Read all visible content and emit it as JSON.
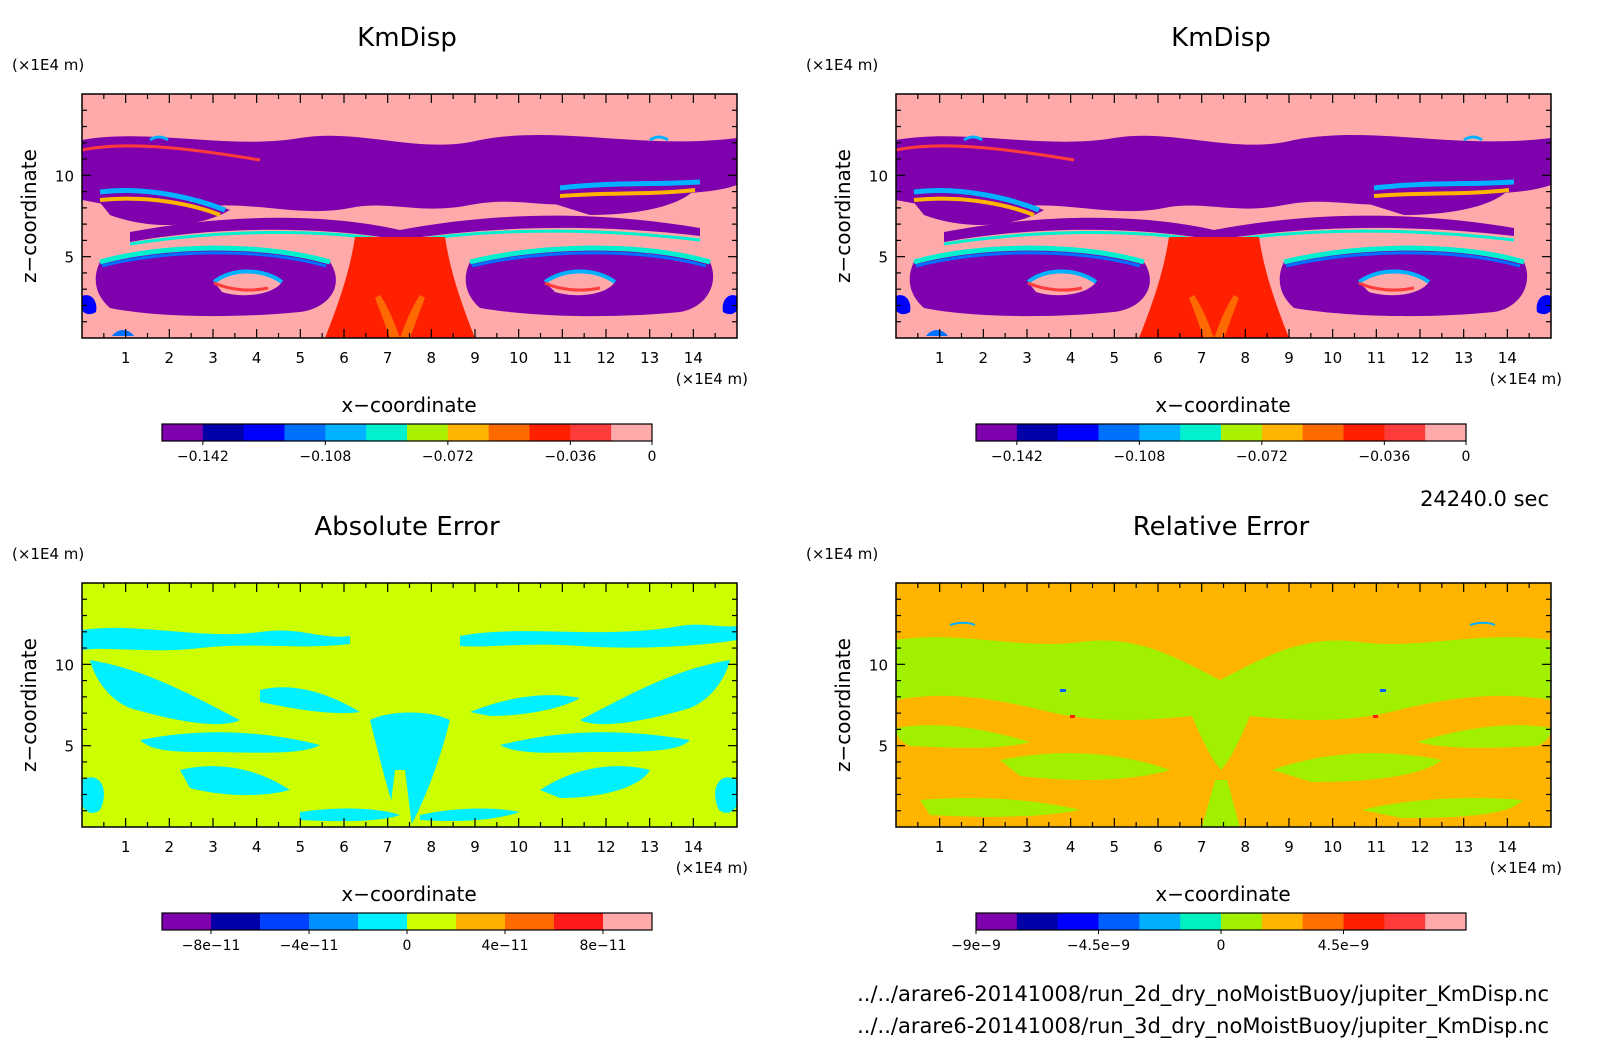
{
  "time_label": "24240.0 sec",
  "files": [
    "../../arare6-20141008/run_2d_dry_noMoistBuoy/jupiter_KmDisp.nc",
    "../../arare6-20141008/run_3d_dry_noMoistBuoy/jupiter_KmDisp.nc"
  ],
  "chart_data": [
    {
      "type": "heatmap",
      "title": "KmDisp",
      "xlabel": "x−coordinate",
      "ylabel": "z−coordinate",
      "x_unit": "(×1E4 m)",
      "y_unit": "(×1E4 m)",
      "xlim": [
        0,
        15
      ],
      "ylim": [
        0,
        15
      ],
      "x_ticks": [
        "1",
        "2",
        "3",
        "4",
        "5",
        "6",
        "7",
        "8",
        "9",
        "10",
        "11",
        "12",
        "13",
        "14"
      ],
      "y_ticks": [
        "5",
        "10"
      ],
      "colorbar": {
        "colors": [
          "#7f00ad",
          "#0000a8",
          "#0000ff",
          "#0070ff",
          "#00b2ff",
          "#00f0d0",
          "#aaf000",
          "#ffb400",
          "#ff6a00",
          "#ff2000",
          "#ff3c3c",
          "#ffaaaa"
        ],
        "labels": [
          "−0.142",
          "−0.108",
          "−0.072",
          "−0.036",
          "0"
        ]
      },
      "background": "#ffaaaa"
    },
    {
      "type": "heatmap",
      "title": "KmDisp",
      "xlabel": "x−coordinate",
      "ylabel": "z−coordinate",
      "x_unit": "(×1E4 m)",
      "y_unit": "(×1E4 m)",
      "xlim": [
        0,
        15
      ],
      "ylim": [
        0,
        15
      ],
      "x_ticks": [
        "1",
        "2",
        "3",
        "4",
        "5",
        "6",
        "7",
        "8",
        "9",
        "10",
        "11",
        "12",
        "13",
        "14"
      ],
      "y_ticks": [
        "5",
        "10"
      ],
      "colorbar": {
        "colors": [
          "#7f00ad",
          "#0000a8",
          "#0000ff",
          "#0070ff",
          "#00b2ff",
          "#00f0d0",
          "#aaf000",
          "#ffb400",
          "#ff6a00",
          "#ff2000",
          "#ff3c3c",
          "#ffaaaa"
        ],
        "labels": [
          "−0.142",
          "−0.108",
          "−0.072",
          "−0.036",
          "0"
        ]
      },
      "background": "#ffaaaa"
    },
    {
      "type": "heatmap",
      "title": "Absolute Error",
      "xlabel": "x−coordinate",
      "ylabel": "z−coordinate",
      "x_unit": "(×1E4 m)",
      "y_unit": "(×1E4 m)",
      "xlim": [
        0,
        15
      ],
      "ylim": [
        0,
        15
      ],
      "x_ticks": [
        "1",
        "2",
        "3",
        "4",
        "5",
        "6",
        "7",
        "8",
        "9",
        "10",
        "11",
        "12",
        "13",
        "14"
      ],
      "y_ticks": [
        "5",
        "10"
      ],
      "colorbar": {
        "colors": [
          "#7f00ad",
          "#0000a8",
          "#0040ff",
          "#0090ff",
          "#00f0ff",
          "#ccff00",
          "#ffb000",
          "#ff6a00",
          "#ff1a1a",
          "#ffaaaa"
        ],
        "labels": [
          "−8e−11",
          "−4e−11",
          "0",
          "4e−11",
          "8e−11"
        ]
      },
      "background": "#ccff00"
    },
    {
      "type": "heatmap",
      "title": "Relative Error",
      "xlabel": "x−coordinate",
      "ylabel": "z−coordinate",
      "x_unit": "(×1E4 m)",
      "y_unit": "(×1E4 m)",
      "xlim": [
        0,
        15
      ],
      "ylim": [
        0,
        15
      ],
      "x_ticks": [
        "1",
        "2",
        "3",
        "4",
        "5",
        "6",
        "7",
        "8",
        "9",
        "10",
        "11",
        "12",
        "13",
        "14"
      ],
      "y_ticks": [
        "5",
        "10"
      ],
      "colorbar": {
        "colors": [
          "#7f00ad",
          "#0000a8",
          "#0000ff",
          "#0060ff",
          "#00b0ff",
          "#00f0c0",
          "#a0f000",
          "#ffb400",
          "#ff7000",
          "#ff2000",
          "#ff3c3c",
          "#ffaaaa"
        ],
        "labels": [
          "−9e−9",
          "−4.5e−9",
          "0",
          "4.5e−9"
        ]
      },
      "background": "#ffb400"
    }
  ]
}
